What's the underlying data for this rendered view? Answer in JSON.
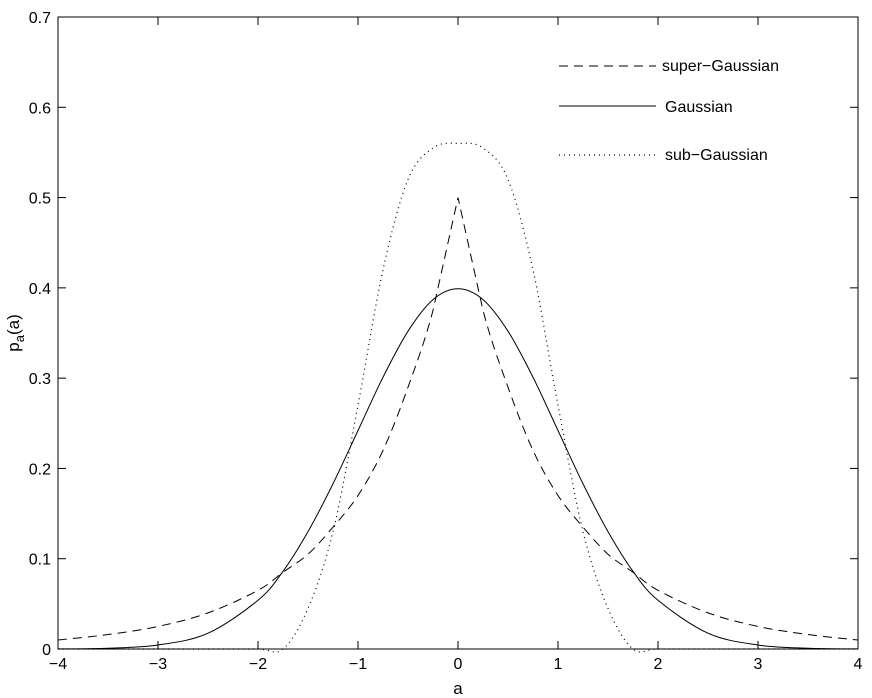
{
  "chart_data": {
    "type": "line",
    "title": "",
    "xlabel": "a",
    "ylabel": "p_a(a)",
    "ylabel_main": "p",
    "ylabel_sub": "a",
    "ylabel_tail": "(a)",
    "xlim": [
      -4,
      4
    ],
    "ylim": [
      0,
      0.7
    ],
    "xticks": [
      -4,
      -3,
      -2,
      -1,
      0,
      1,
      2,
      3,
      4
    ],
    "xtick_labels": [
      "−4",
      "−3",
      "−2",
      "−1",
      "0",
      "1",
      "2",
      "3",
      "4"
    ],
    "yticks": [
      0,
      0.1,
      0.2,
      0.3,
      0.4,
      0.5,
      0.6,
      0.7
    ],
    "ytick_labels": [
      "0",
      "0.1",
      "0.2",
      "0.3",
      "0.4",
      "0.5",
      "0.6",
      "0.7"
    ],
    "grid": false,
    "legend_position": "top-right",
    "x": [
      -4.0,
      -3.5,
      -3.0,
      -2.5,
      -2.0,
      -1.75,
      -1.5,
      -1.25,
      -1.0,
      -0.75,
      -0.5,
      -0.25,
      0.0,
      0.25,
      0.5,
      0.75,
      1.0,
      1.25,
      1.5,
      1.75,
      2.0,
      2.5,
      3.0,
      3.5,
      4.0
    ],
    "series": [
      {
        "name": "super−Gaussian",
        "style": "dashed",
        "values": [
          0.01,
          0.016,
          0.025,
          0.04,
          0.065,
          0.085,
          0.105,
          0.135,
          0.17,
          0.22,
          0.29,
          0.375,
          0.5,
          0.375,
          0.29,
          0.22,
          0.17,
          0.135,
          0.105,
          0.085,
          0.065,
          0.04,
          0.025,
          0.016,
          0.01
        ]
      },
      {
        "name": "Gaussian",
        "style": "solid",
        "values": [
          0.0001,
          0.0009,
          0.0044,
          0.0175,
          0.054,
          0.086,
          0.13,
          0.183,
          0.242,
          0.301,
          0.352,
          0.387,
          0.399,
          0.387,
          0.352,
          0.301,
          0.242,
          0.183,
          0.13,
          0.086,
          0.054,
          0.0175,
          0.0044,
          0.0009,
          0.0001
        ]
      },
      {
        "name": "sub−Gaussian",
        "style": "dotted",
        "values": [
          0.0,
          0.0,
          0.0,
          0.0,
          0.0,
          0.0,
          0.045,
          0.13,
          0.27,
          0.42,
          0.52,
          0.555,
          0.56,
          0.555,
          0.52,
          0.42,
          0.27,
          0.13,
          0.045,
          0.0,
          0.0,
          0.0,
          0.0,
          0.0,
          0.0
        ]
      }
    ]
  }
}
